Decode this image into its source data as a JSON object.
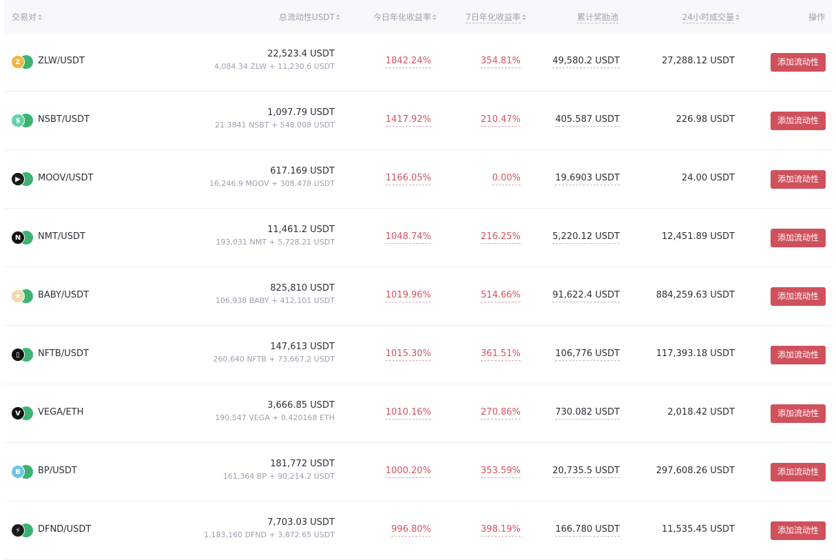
{
  "header": {
    "pair": "交易对",
    "liquidity": "总流动性USDT",
    "apy_today": "今日年化收益率",
    "apy_7d": "7日年化收益率",
    "reward_pool": "累计奖励池",
    "volume_24h": "24小时成交量",
    "action": "操作"
  },
  "colors": {
    "accent": "#d0505b",
    "apy": "#d2545e",
    "header_bg": "#f7f8fa"
  },
  "rows": [
    {
      "pair": "ZLW/USDT",
      "icon": "zlw-icon",
      "liquidity": "22,523.4 USDT",
      "composition": "4,084.34 ZLW + 11,230.6 USDT",
      "apy_today": "1842.24%",
      "apy_7d": "354.81%",
      "reward": "49,580.2 USDT",
      "volume": "27,288.12 USDT",
      "button": "添加流动性",
      "coin_color": "#f2b544",
      "coin_glyph": "Z"
    },
    {
      "pair": "NSBT/USDT",
      "icon": "nsbt-icon",
      "liquidity": "1,097.79 USDT",
      "composition": "21.3841 NSBT + 548.008 USDT",
      "apy_today": "1417.92%",
      "apy_7d": "210.47%",
      "reward": "405.587 USDT",
      "volume": "226.98 USDT",
      "button": "添加流动性",
      "coin_color": "#5fd3a8",
      "coin_glyph": "$"
    },
    {
      "pair": "MOOV/USDT",
      "icon": "moov-icon",
      "liquidity": "617.169 USDT",
      "composition": "16,246.9 MOOV + 308.478 USDT",
      "apy_today": "1166.05%",
      "apy_7d": "0.00%",
      "reward": "19.6903 USDT",
      "volume": "24.00 USDT",
      "button": "添加流动性",
      "coin_color": "#1b1b1b",
      "coin_glyph": "▶"
    },
    {
      "pair": "NMT/USDT",
      "icon": "nmt-icon",
      "liquidity": "11,461.2 USDT",
      "composition": "193,031 NMT + 5,728.21 USDT",
      "apy_today": "1048.74%",
      "apy_7d": "216.25%",
      "reward": "5,220.12 USDT",
      "volume": "12,451.89 USDT",
      "button": "添加流动性",
      "coin_color": "#111111",
      "coin_glyph": "N"
    },
    {
      "pair": "BABY/USDT",
      "icon": "baby-icon",
      "liquidity": "825,810 USDT",
      "composition": "106,938 BABY + 412,101 USDT",
      "apy_today": "1019.96%",
      "apy_7d": "514.66%",
      "reward": "91,622.4 USDT",
      "volume": "884,259.63 USDT",
      "button": "添加流动性",
      "coin_color": "#f0d9b0",
      "coin_glyph": "★"
    },
    {
      "pair": "NFTB/USDT",
      "icon": "nftb-icon",
      "liquidity": "147,613 USDT",
      "composition": "260,640 NFTB + 73,667.2 USDT",
      "apy_today": "1015.30%",
      "apy_7d": "361.51%",
      "reward": "106,776 USDT",
      "volume": "117,393.18 USDT",
      "button": "添加流动性",
      "coin_color": "#111111",
      "coin_glyph": "▯"
    },
    {
      "pair": "VEGA/ETH",
      "icon": "vega-icon",
      "liquidity": "3,666.85 USDT",
      "composition": "190.547 VEGA + 0.420168 ETH",
      "apy_today": "1010.16%",
      "apy_7d": "270.86%",
      "reward": "730.082 USDT",
      "volume": "2,018.42 USDT",
      "button": "添加流动性",
      "coin_color": "#111111",
      "coin_glyph": "V"
    },
    {
      "pair": "BP/USDT",
      "icon": "bp-icon",
      "liquidity": "181,772 USDT",
      "composition": "161,364 BP + 90,214.2 USDT",
      "apy_today": "1000.20%",
      "apy_7d": "353.59%",
      "reward": "20,735.5 USDT",
      "volume": "297,608.26 USDT",
      "button": "添加流动性",
      "coin_color": "#6ec6e6",
      "coin_glyph": "B"
    },
    {
      "pair": "DFND/USDT",
      "icon": "dfnd-icon",
      "liquidity": "7,703.03 USDT",
      "composition": "1,183,160 DFND + 3,872.65 USDT",
      "apy_today": "996.80%",
      "apy_7d": "398.19%",
      "reward": "166.780 USDT",
      "volume": "11,535.45 USDT",
      "button": "添加流动性",
      "coin_color": "#1b1b1b",
      "coin_glyph": "⚡"
    }
  ]
}
